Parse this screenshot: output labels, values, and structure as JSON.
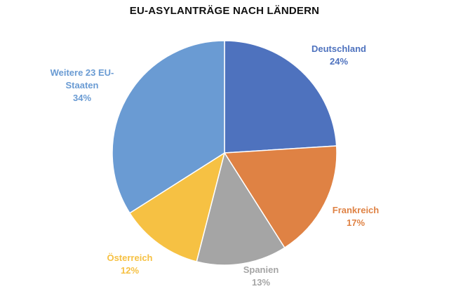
{
  "chart_data": {
    "type": "pie",
    "title": "EU-ASYLANTRÄGE NACH LÄNDERN",
    "start_angle_deg": 0,
    "direction": "clockwise",
    "slices": [
      {
        "label": "Deutschland",
        "value": 24,
        "value_label": "24%",
        "color": "#4E72BE"
      },
      {
        "label": "Frankreich",
        "value": 17,
        "value_label": "17%",
        "color": "#DF8244"
      },
      {
        "label": "Spanien",
        "value": 13,
        "value_label": "13%",
        "color": "#A5A5A5"
      },
      {
        "label": "Österreich",
        "value": 12,
        "value_label": "12%",
        "color": "#F6C143"
      },
      {
        "label": "Weitere 23 EU-Staaten",
        "label_lines": [
          "Weitere 23 EU-",
          "Staaten"
        ],
        "value": 34,
        "value_label": "34%",
        "color": "#6A9BD3"
      }
    ],
    "legend": "none",
    "data_labels": "outside"
  }
}
